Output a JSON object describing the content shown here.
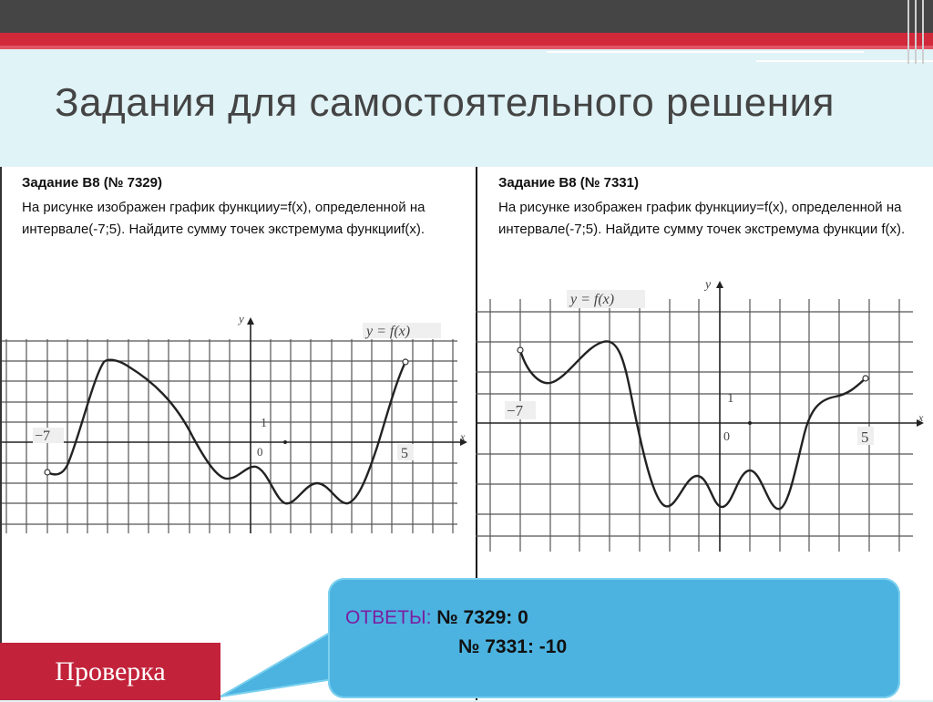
{
  "slide": {
    "title": "Задания для самостоятельного решения"
  },
  "task_left": {
    "title": "Задание B8 (№ 7329)",
    "text": "На рисунке изображен график функцииy=f(x), определенной на интервале(-7;5). Найдите сумму точек экстремума функцииf(x)."
  },
  "task_right": {
    "title": "Задание B8 (№ 7331)",
    "text": " На рисунке изображен график функцииy=f(x), определенной на интервале(-7;5). Найдите сумму точек экстремума функции f(x)."
  },
  "graph_left": {
    "func_label": "y = f(x)",
    "y_label": "y",
    "x_label": "x",
    "x_min_label": "−7",
    "x_max_label": "5",
    "one_label": "1",
    "zero_label": "0"
  },
  "graph_right": {
    "func_label": "y = f(x)",
    "y_label": "y",
    "x_label": "x",
    "x_min_label": "−7",
    "x_max_label": "5",
    "one_label": "1",
    "zero_label": "0"
  },
  "answers": {
    "label": "ОТВЕТЫ:",
    "line1": "№ 7329: 0",
    "line2": "№ 7331: -10"
  },
  "check_button": {
    "label": "Проверка"
  },
  "colors": {
    "top_band": "#454545",
    "red_band": "#d1283a",
    "bubble": "#4cb3e0",
    "answer_label": "#7a1fa2",
    "check_button": "#c2223a"
  }
}
